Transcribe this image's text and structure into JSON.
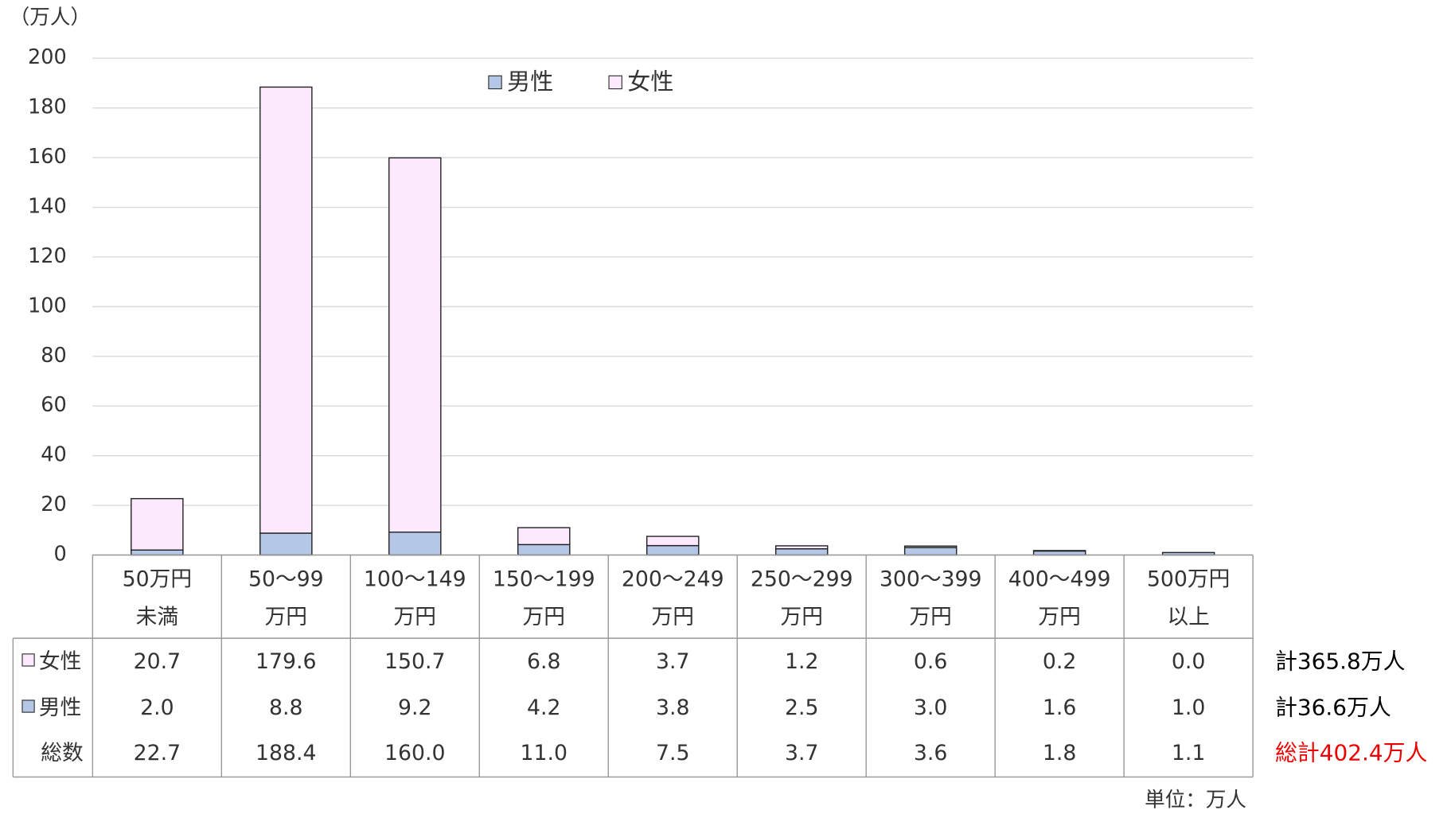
{
  "chart_data": {
    "type": "stacked_bar",
    "y_axis_label": "（万人）",
    "categories": [
      [
        "50万円",
        "未満"
      ],
      [
        "50～99",
        "万円"
      ],
      [
        "100～149",
        "万円"
      ],
      [
        "150～199",
        "万円"
      ],
      [
        "200～249",
        "万円"
      ],
      [
        "250～299",
        "万円"
      ],
      [
        "300～399",
        "万円"
      ],
      [
        "400～499",
        "万円"
      ],
      [
        "500万円",
        "以上"
      ]
    ],
    "series": [
      {
        "name": "男性",
        "color": "#b4c7e7",
        "values": [
          2.0,
          8.8,
          9.2,
          4.2,
          3.8,
          2.5,
          3.0,
          1.6,
          1.0
        ],
        "value_labels": [
          "2.0",
          "8.8",
          "9.2",
          "4.2",
          "3.8",
          "2.5",
          "3.0",
          "1.6",
          "1.0"
        ],
        "total_note": "計36.6万人"
      },
      {
        "name": "女性",
        "color": "#fde9fd",
        "values": [
          20.7,
          179.6,
          150.7,
          6.8,
          3.7,
          1.2,
          0.6,
          0.2,
          0.0
        ],
        "value_labels": [
          "20.7",
          "179.6",
          "150.7",
          "6.8",
          "3.7",
          "1.2",
          "0.6",
          "0.2",
          "0.0"
        ],
        "total_note": "計365.8万人"
      }
    ],
    "total_row_label": "総数",
    "totals": [
      22.7,
      188.4,
      160.0,
      11.0,
      7.5,
      3.7,
      3.6,
      1.8,
      1.1
    ],
    "totals_labels": [
      "22.7",
      "188.4",
      "160.0",
      "11.0",
      "7.5",
      "3.7",
      "3.6",
      "1.8",
      "1.1"
    ],
    "grand_total_note": "総計402.4万人",
    "unit_note": "単位：万人",
    "ylim": [
      0,
      200
    ],
    "yticks": [
      0,
      20,
      40,
      60,
      80,
      100,
      120,
      140,
      160,
      180,
      200
    ],
    "grid": true,
    "legend": "top"
  }
}
